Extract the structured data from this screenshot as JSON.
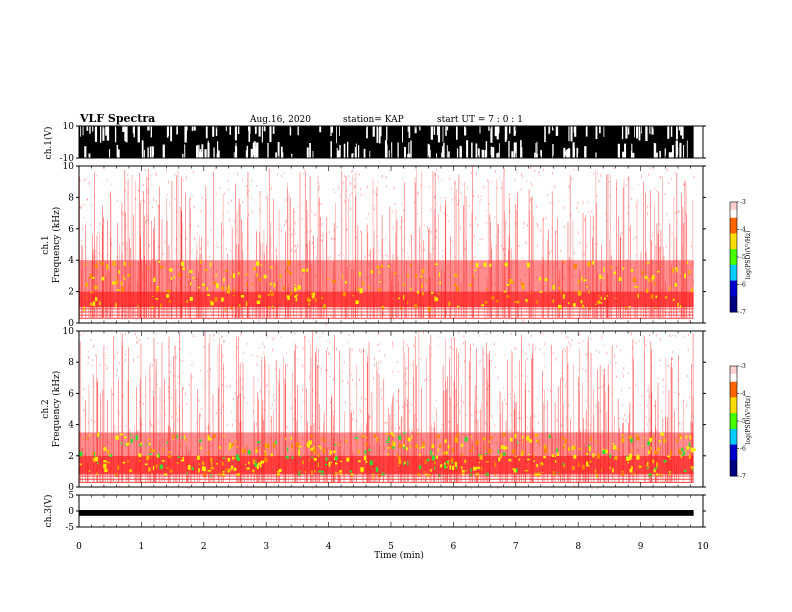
{
  "header": {
    "title": "VLF  Spectra",
    "date": "Aug.16, 2020",
    "station": "station= KAP",
    "start": "start  UT  =   7 : 0  : 1"
  },
  "chart_data": [
    {
      "type": "line",
      "panel": "ch1-waveform",
      "ylabel": "ch.1(V)",
      "ylim": [
        -10,
        10
      ],
      "y_ticks": [
        "10",
        "-10"
      ],
      "xlim": [
        0,
        10
      ],
      "data_extent_min": 9.85,
      "description_of_signal": "saturated broadband noise",
      "envelope": [
        -10,
        10
      ]
    },
    {
      "type": "heatmap",
      "panel": "ch1-spectrogram",
      "ylabel": "ch.1\nFrequency  (kHz)",
      "ylim": [
        0,
        10
      ],
      "y_ticks": [
        "0",
        "2",
        "4",
        "6",
        "8",
        "10"
      ],
      "xlim": [
        0,
        10
      ],
      "data_extent_min": 9.85,
      "colorbar": {
        "label": "log(PSD)(V²/Hz)",
        "range": [
          -7,
          -3
        ],
        "ticks": [
          "-3",
          "-4",
          "-5",
          "-6",
          "-7"
        ]
      },
      "band_strong_khz": [
        1.0,
        2.0
      ],
      "band_moderate_khz": [
        2.0,
        4.0
      ]
    },
    {
      "type": "heatmap",
      "panel": "ch2-spectrogram",
      "ylabel": "ch.2\nFrequency  (kHz)",
      "ylim": [
        0,
        10
      ],
      "y_ticks": [
        "0",
        "2",
        "4",
        "6",
        "8",
        "10"
      ],
      "xlim": [
        0,
        10
      ],
      "data_extent_min": 9.85,
      "colorbar": {
        "label": "log(PSD)(V²/Hz)",
        "range": [
          -7,
          -3
        ],
        "ticks": [
          "-3",
          "-4",
          "-5",
          "-6",
          "-7"
        ]
      },
      "band_strong_khz": [
        0.8,
        2.0
      ],
      "band_moderate_khz": [
        2.0,
        3.5
      ]
    },
    {
      "type": "line",
      "panel": "ch3-waveform",
      "ylabel": "ch.3(V)",
      "ylim": [
        -5,
        5
      ],
      "y_ticks": [
        "5",
        "0",
        "-5"
      ],
      "xlim": [
        0,
        10
      ],
      "data_extent_min": 9.85,
      "envelope": [
        -1.5,
        0.3
      ]
    }
  ],
  "x_axis": {
    "label": "Time  (min)",
    "ticks": [
      "0",
      "1",
      "2",
      "3",
      "4",
      "5",
      "6",
      "7",
      "8",
      "9",
      "10"
    ]
  },
  "colors": {
    "bg": "#ffffff",
    "red": "#ff2a2a",
    "orange": "#ff8800",
    "yellow": "#ffee00",
    "green": "#33dd33"
  }
}
